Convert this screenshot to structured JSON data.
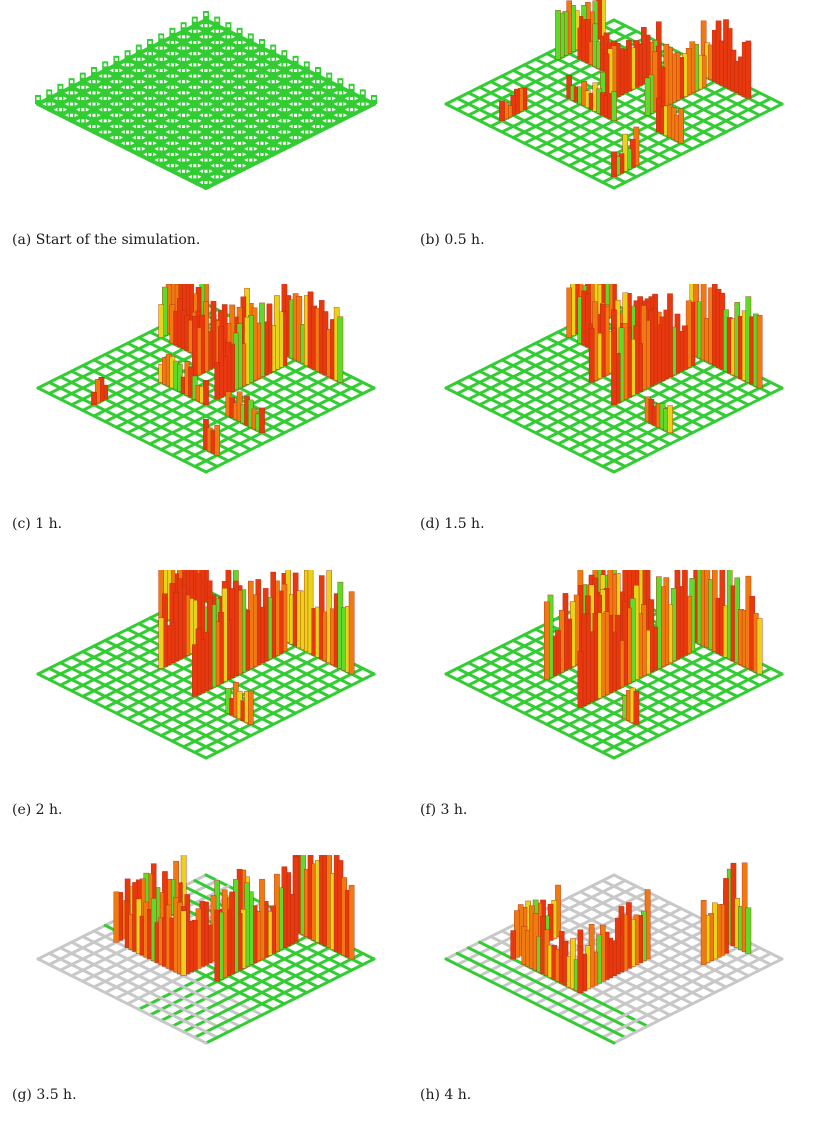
{
  "panels": [
    {
      "id": "a",
      "caption": "(a) Start of the simulation.",
      "grid_state": "all-green-with-stubs",
      "wall_level": 0
    },
    {
      "id": "b",
      "caption": "(b) 0.5 h.",
      "grid_state": "green",
      "wall_level": 1
    },
    {
      "id": "c",
      "caption": "(c) 1 h.",
      "grid_state": "green",
      "wall_level": 2
    },
    {
      "id": "d",
      "caption": "(d) 1.5 h.",
      "grid_state": "green",
      "wall_level": 3
    },
    {
      "id": "e",
      "caption": "(e) 2 h.",
      "grid_state": "green",
      "wall_level": 4
    },
    {
      "id": "f",
      "caption": "(f) 3 h.",
      "grid_state": "green",
      "wall_level": 5
    },
    {
      "id": "g",
      "caption": "(g) 3.5 h.",
      "grid_state": "partly-grey",
      "wall_level": 6
    },
    {
      "id": "h",
      "caption": "(h) 4 h.",
      "grid_state": "mostly-grey",
      "wall_level": 7
    }
  ],
  "colors": {
    "grid_green": "#33cc33",
    "grid_grey": "#c8c8c8",
    "wall_red": "#e8380f",
    "wall_orange": "#f07a12",
    "wall_yellow": "#e8d21a",
    "wall_green": "#5fd92a"
  }
}
